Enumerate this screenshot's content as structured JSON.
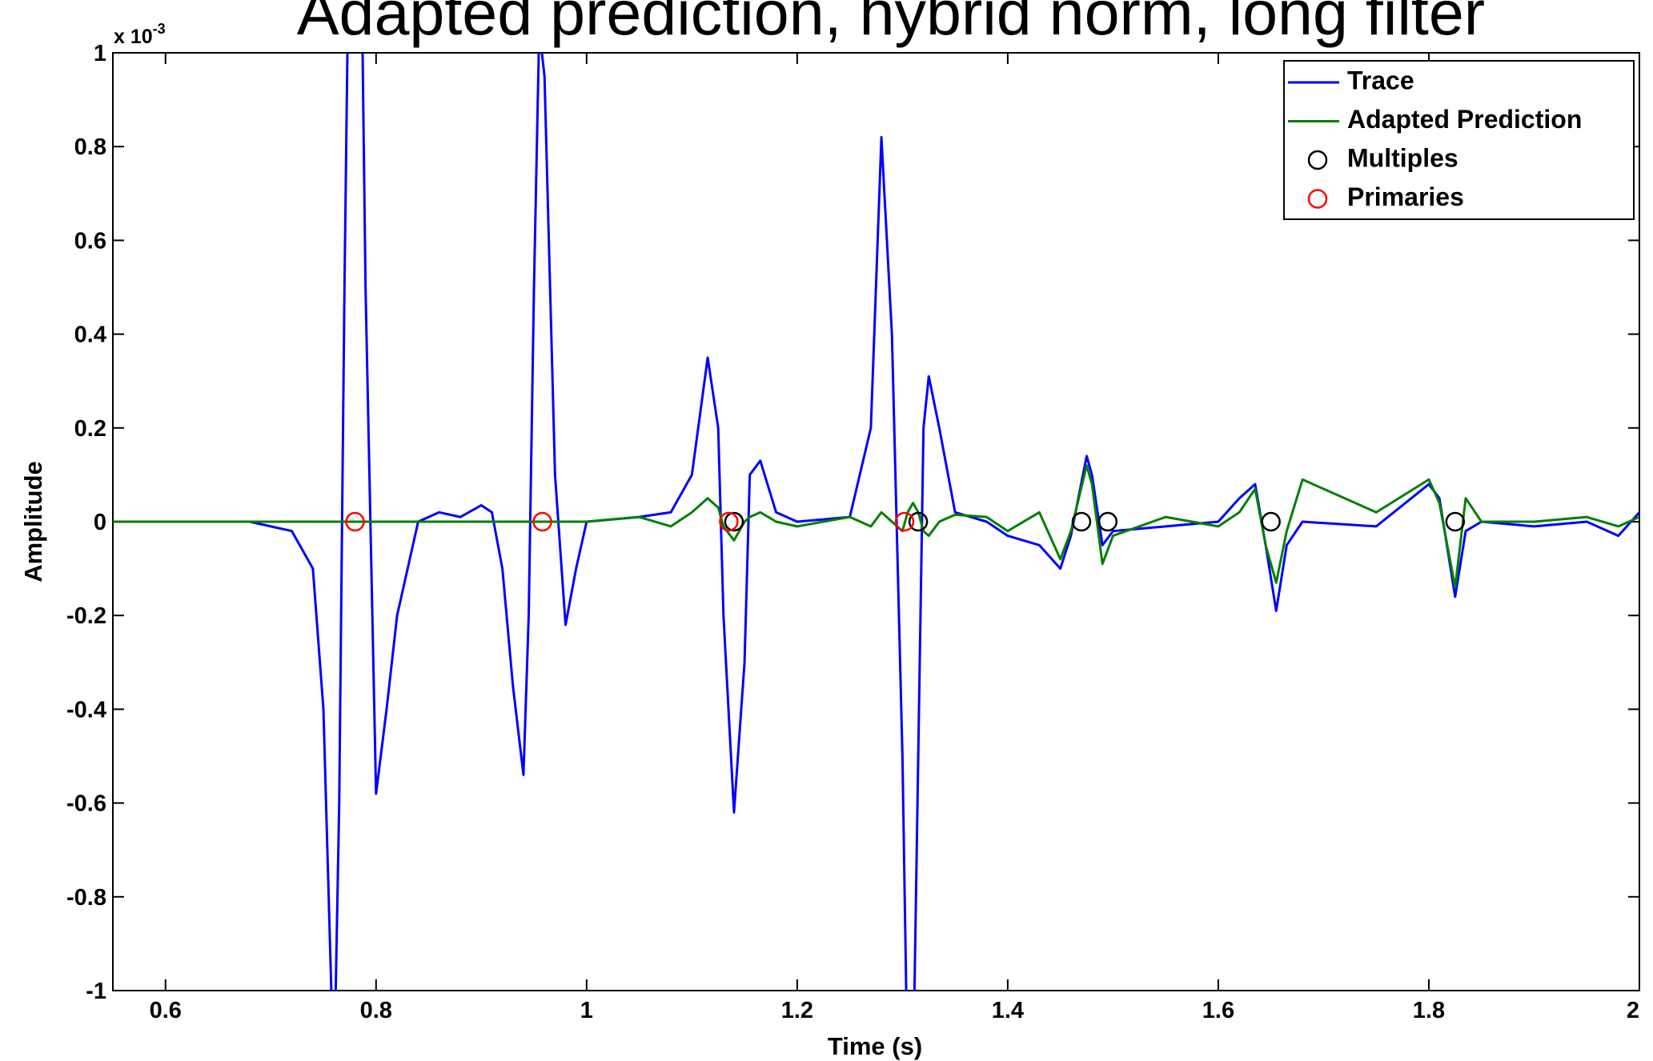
{
  "chart_data": {
    "type": "line",
    "title": "Adapted prediction, hybrid norm, long filter",
    "xlabel": "Time (s)",
    "ylabel": "Amplitude",
    "y_scale_base": "x 10",
    "y_scale_exponent": "-3",
    "xlim": [
      0.55,
      2
    ],
    "ylim": [
      -1,
      1
    ],
    "xticks": [
      0.6,
      0.8,
      1,
      1.2,
      1.4,
      1.6,
      1.8,
      2
    ],
    "yticks": [
      -1,
      -0.8,
      -0.6,
      -0.4,
      -0.2,
      0,
      0.2,
      0.4,
      0.6,
      0.8,
      1
    ],
    "legend": "upper right",
    "x": [
      0.55,
      0.68,
      0.72,
      0.74,
      0.75,
      0.76,
      0.765,
      0.77,
      0.775,
      0.785,
      0.79,
      0.8,
      0.81,
      0.82,
      0.84,
      0.86,
      0.88,
      0.9,
      0.91,
      0.92,
      0.93,
      0.94,
      0.945,
      0.95,
      0.955,
      0.96,
      0.97,
      0.98,
      0.99,
      1.0,
      1.05,
      1.08,
      1.1,
      1.115,
      1.125,
      1.13,
      1.14,
      1.15,
      1.155,
      1.165,
      1.18,
      1.2,
      1.25,
      1.27,
      1.28,
      1.29,
      1.3,
      1.305,
      1.31,
      1.315,
      1.32,
      1.325,
      1.335,
      1.35,
      1.38,
      1.4,
      1.43,
      1.45,
      1.46,
      1.475,
      1.48,
      1.49,
      1.5,
      1.55,
      1.6,
      1.62,
      1.635,
      1.645,
      1.655,
      1.665,
      1.68,
      1.75,
      1.8,
      1.81,
      1.825,
      1.835,
      1.85,
      1.9,
      1.95,
      1.98,
      2.0
    ],
    "series": [
      {
        "name": "Trace",
        "color": "#0000ff",
        "values": [
          0,
          0,
          -0.02,
          -0.1,
          -0.4,
          -1.2,
          -0.6,
          0.5,
          1.4,
          1.4,
          0.5,
          -0.58,
          -0.4,
          -0.2,
          0,
          0.02,
          0.01,
          0.035,
          0.02,
          -0.1,
          -0.35,
          -0.54,
          -0.2,
          0.5,
          1.05,
          0.95,
          0.1,
          -0.22,
          -0.1,
          0,
          0.01,
          0.02,
          0.1,
          0.35,
          0.2,
          -0.2,
          -0.62,
          -0.3,
          0.1,
          0.13,
          0.02,
          0,
          0.01,
          0.2,
          0.82,
          0.4,
          -0.5,
          -1.2,
          -1.2,
          -0.5,
          0.2,
          0.31,
          0.2,
          0.02,
          0,
          -0.03,
          -0.05,
          -0.1,
          -0.03,
          0.14,
          0.1,
          -0.05,
          -0.02,
          -0.01,
          0,
          0.05,
          0.08,
          -0.05,
          -0.19,
          -0.05,
          0,
          -0.01,
          0.08,
          0.05,
          -0.16,
          -0.02,
          0,
          -0.01,
          0,
          -0.03,
          0.02
        ]
      },
      {
        "name": "Adapted Prediction",
        "color": "#008000",
        "values": [
          0,
          0,
          0,
          0,
          0,
          0,
          0,
          0,
          0,
          0,
          0,
          0,
          0,
          0,
          0,
          0,
          0,
          0,
          0,
          0,
          0,
          0,
          0,
          0,
          0,
          0,
          0,
          0,
          0,
          0,
          0.01,
          -0.01,
          0.02,
          0.05,
          0.03,
          -0.01,
          -0.04,
          0,
          0.01,
          0.02,
          0,
          -0.01,
          0.01,
          -0.01,
          0.02,
          0,
          -0.02,
          0.02,
          0.04,
          0.02,
          -0.02,
          -0.03,
          0,
          0.015,
          0.01,
          -0.02,
          0.02,
          -0.08,
          -0.02,
          0.12,
          0.08,
          -0.09,
          -0.03,
          0.01,
          -0.01,
          0.02,
          0.07,
          -0.05,
          -0.13,
          -0.02,
          0.09,
          0.02,
          0.09,
          0.04,
          -0.14,
          0.05,
          0,
          0,
          0.01,
          -0.01,
          0.01
        ]
      }
    ],
    "markers": [
      {
        "name": "Multiples",
        "color": "#000000",
        "x": [
          1.14,
          1.315,
          1.47,
          1.495,
          1.65,
          1.825
        ],
        "values": [
          0,
          0,
          0,
          0,
          0,
          0
        ]
      },
      {
        "name": "Primaries",
        "color": "#ff0000",
        "x": [
          0.78,
          0.958,
          1.135,
          1.302
        ],
        "values": [
          0,
          0,
          0,
          0
        ]
      }
    ]
  }
}
